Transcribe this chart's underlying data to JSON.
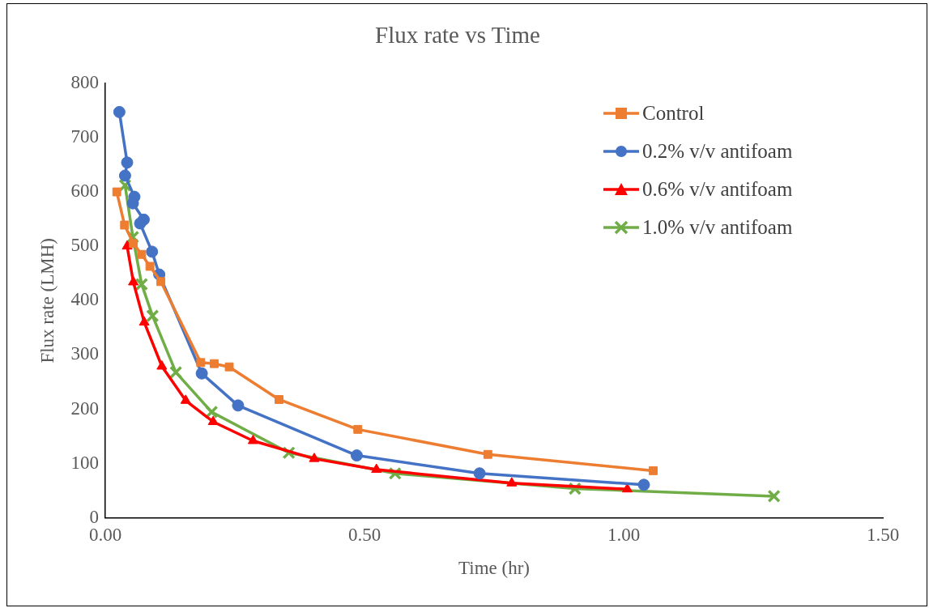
{
  "chart_data": {
    "type": "line",
    "title": "Flux rate vs Time",
    "xlabel": "Time (hr)",
    "ylabel": "Flux rate (LMH)",
    "xlim": [
      0,
      1.5
    ],
    "xticks": [
      {
        "value": 0,
        "label": "0.00"
      },
      {
        "value": 0.5,
        "label": "0.50"
      },
      {
        "value": 1,
        "label": "1.00"
      },
      {
        "value": 1.5,
        "label": "1.50"
      }
    ],
    "ylim": [
      0,
      800
    ],
    "yticks": [
      0,
      100,
      200,
      300,
      400,
      500,
      600,
      700,
      800
    ],
    "grid": false,
    "legend": "top right",
    "line_style": "solid",
    "series": [
      {
        "name": "Control",
        "color": "#ed7d31",
        "marker": "square",
        "x": [
          0.022,
          0.037,
          0.054,
          0.07,
          0.086,
          0.107,
          0.184,
          0.21,
          0.239,
          0.335,
          0.487,
          0.738,
          1.057
        ],
        "values": [
          600,
          539,
          505,
          485,
          463,
          435,
          286,
          284,
          278,
          218,
          163,
          117,
          87
        ]
      },
      {
        "name": "0.2% v/v antifoam",
        "color": "#4472c4",
        "marker": "circle",
        "x": [
          0.027,
          0.042,
          0.038,
          0.056,
          0.053,
          0.074,
          0.067,
          0.09,
          0.104,
          0.186,
          0.256,
          0.485,
          0.722,
          1.039
        ],
        "values": [
          747,
          654,
          630,
          591,
          579,
          549,
          542,
          490,
          448,
          266,
          207,
          115,
          82,
          61
        ]
      },
      {
        "name": "0.6% v/v antifoam",
        "color": "#ff0000",
        "marker": "triangle",
        "x": [
          0.042,
          0.054,
          0.075,
          0.109,
          0.155,
          0.208,
          0.285,
          0.403,
          0.523,
          0.784,
          1.007
        ],
        "values": [
          500,
          434,
          360,
          279,
          216,
          177,
          142,
          109,
          89,
          64,
          53
        ]
      },
      {
        "name": "1.0% v/v antifoam",
        "color": "#70ad47",
        "marker": "cross",
        "x": [
          0.038,
          0.053,
          0.07,
          0.091,
          0.136,
          0.205,
          0.354,
          0.559,
          0.906,
          1.29
        ],
        "values": [
          612,
          517,
          430,
          372,
          268,
          195,
          120,
          82,
          54,
          40
        ]
      }
    ]
  }
}
